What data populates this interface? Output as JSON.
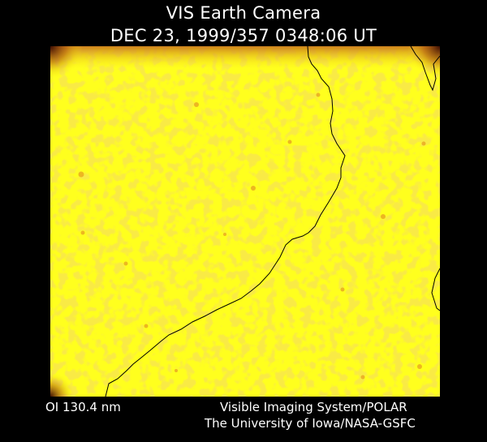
{
  "header": {
    "title": "VIS Earth Camera",
    "timestamp": "DEC 23, 1999/357 0348:06 UT"
  },
  "footer": {
    "wavelength": "OI  130.4 nm",
    "instrument": "Visible Imaging System/POLAR",
    "institution": "The University of Iowa/NASA-GSFC"
  },
  "image": {
    "colormap": [
      "#ffff1e",
      "#fbe61e",
      "#e8b322",
      "#b05a12",
      "#5a1a06"
    ],
    "outline_color": "#000000"
  }
}
